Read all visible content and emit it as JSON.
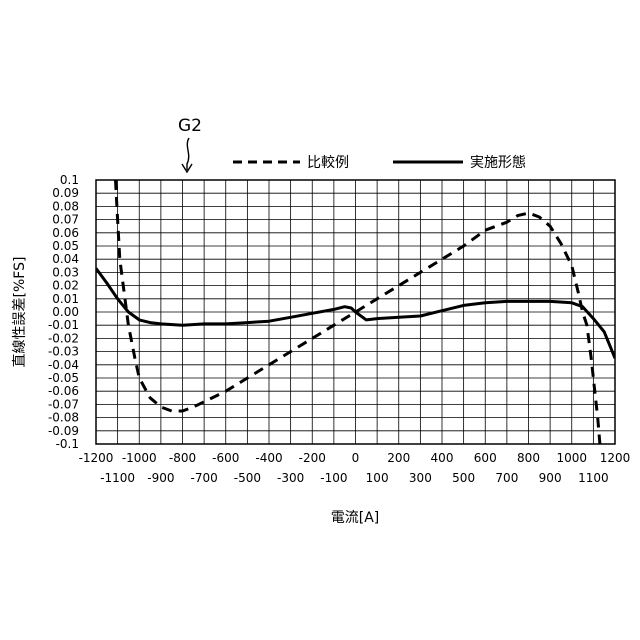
{
  "chart_data": {
    "type": "line",
    "figure_label": "G2",
    "xlabel": "電流[A]",
    "ylabel": "直線性誤差[%FS]",
    "xlim": [
      -1200,
      1200
    ],
    "ylim": [
      -0.1,
      0.1
    ],
    "grid": true,
    "legend_position": "top",
    "x_ticks_upper": [
      "-1200",
      "-1000",
      "-800",
      "-600",
      "-400",
      "-200",
      "0",
      "200",
      "400",
      "600",
      "800",
      "1000",
      "1200"
    ],
    "x_ticks_lower": [
      "-1100",
      "-900",
      "-700",
      "-500",
      "-300",
      "-100",
      "100",
      "300",
      "500",
      "700",
      "900",
      "1100"
    ],
    "y_ticks": [
      "0.1",
      "0.09",
      "0.08",
      "0.07",
      "0.06",
      "0.05",
      "0.04",
      "0.03",
      "0.02",
      "0.01",
      "0.00",
      "-0.01",
      "-0.02",
      "-0.03",
      "-0.04",
      "-0.05",
      "-0.06",
      "-0.07",
      "-0.08",
      "-0.09",
      "-0.1"
    ],
    "series": [
      {
        "name": "比較例",
        "style": "dashed",
        "color": "#000000",
        "points": [
          [
            -1110,
            0.1
          ],
          [
            -1100,
            0.07
          ],
          [
            -1090,
            0.04
          ],
          [
            -1070,
            0.015
          ],
          [
            -1050,
            -0.01
          ],
          [
            -1020,
            -0.035
          ],
          [
            -1000,
            -0.05
          ],
          [
            -950,
            -0.065
          ],
          [
            -900,
            -0.072
          ],
          [
            -850,
            -0.075
          ],
          [
            -800,
            -0.075
          ],
          [
            -750,
            -0.072
          ],
          [
            -700,
            -0.068
          ],
          [
            -600,
            -0.06
          ],
          [
            -500,
            -0.05
          ],
          [
            -400,
            -0.04
          ],
          [
            -300,
            -0.03
          ],
          [
            -200,
            -0.02
          ],
          [
            -100,
            -0.01
          ],
          [
            0,
            0.0
          ],
          [
            100,
            0.01
          ],
          [
            200,
            0.02
          ],
          [
            300,
            0.03
          ],
          [
            400,
            0.04
          ],
          [
            500,
            0.05
          ],
          [
            600,
            0.062
          ],
          [
            700,
            0.068
          ],
          [
            750,
            0.073
          ],
          [
            800,
            0.075
          ],
          [
            850,
            0.072
          ],
          [
            900,
            0.065
          ],
          [
            950,
            0.052
          ],
          [
            1000,
            0.035
          ],
          [
            1030,
            0.015
          ],
          [
            1050,
            0.0
          ],
          [
            1070,
            -0.01
          ],
          [
            1090,
            -0.035
          ],
          [
            1110,
            -0.065
          ],
          [
            1120,
            -0.08
          ],
          [
            1130,
            -0.1
          ]
        ]
      },
      {
        "name": "実施形態",
        "style": "solid",
        "color": "#000000",
        "points": [
          [
            -1200,
            0.033
          ],
          [
            -1150,
            0.022
          ],
          [
            -1100,
            0.01
          ],
          [
            -1050,
            0.0
          ],
          [
            -1000,
            -0.006
          ],
          [
            -950,
            -0.008
          ],
          [
            -900,
            -0.009
          ],
          [
            -800,
            -0.01
          ],
          [
            -700,
            -0.009
          ],
          [
            -600,
            -0.009
          ],
          [
            -500,
            -0.008
          ],
          [
            -400,
            -0.007
          ],
          [
            -300,
            -0.004
          ],
          [
            -200,
            -0.001
          ],
          [
            -100,
            0.002
          ],
          [
            -50,
            0.004
          ],
          [
            -20,
            0.003
          ],
          [
            0,
            0.0
          ],
          [
            50,
            -0.006
          ],
          [
            100,
            -0.005
          ],
          [
            200,
            -0.004
          ],
          [
            300,
            -0.003
          ],
          [
            400,
            0.001
          ],
          [
            500,
            0.005
          ],
          [
            600,
            0.007
          ],
          [
            700,
            0.008
          ],
          [
            800,
            0.008
          ],
          [
            900,
            0.008
          ],
          [
            1000,
            0.007
          ],
          [
            1050,
            0.004
          ],
          [
            1100,
            -0.005
          ],
          [
            1150,
            -0.015
          ],
          [
            1200,
            -0.035
          ]
        ]
      }
    ]
  }
}
